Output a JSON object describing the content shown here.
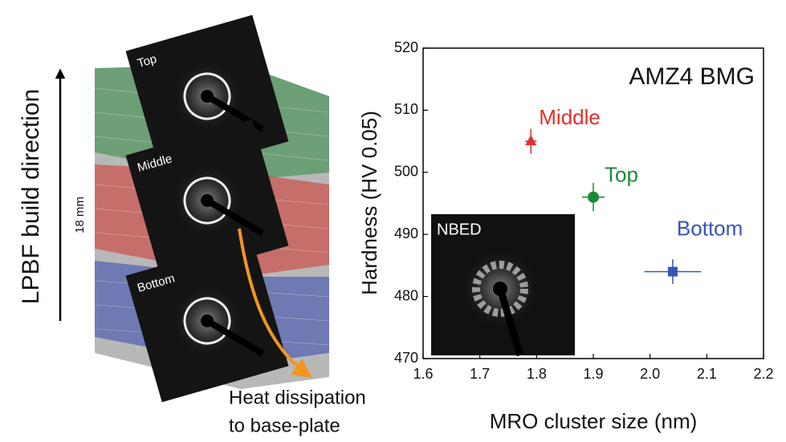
{
  "diagram": {
    "build_direction": "LPBF build direction",
    "height_label": "18 mm",
    "panels": [
      "Top",
      "Middle",
      "Bottom"
    ],
    "heat_text": [
      "Heat dissipation",
      "to base-plate"
    ]
  },
  "chart_data": {
    "type": "scatter",
    "title": "AMZ4 BMG",
    "xlabel": "MRO cluster size (nm)",
    "ylabel": "Hardness (HV 0.05)",
    "inset_label": "NBED",
    "xlim": [
      1.6,
      2.2
    ],
    "xticks": [
      1.6,
      1.7,
      1.8,
      1.9,
      {
        "value": 2,
        "label": "2.0"
      },
      2.1,
      2.2
    ],
    "ylim": [
      470,
      520
    ],
    "yticks": [
      470,
      480,
      490,
      500,
      510,
      520
    ],
    "series": [
      {
        "name": "Middle",
        "color": "#e0302a",
        "marker": "triangle",
        "x": [
          1.79
        ],
        "values": [
          505
        ],
        "xerr": [
          0.01
        ],
        "yerr": [
          2
        ]
      },
      {
        "name": "Top",
        "color": "#1a8a3a",
        "marker": "circle",
        "x": [
          1.9
        ],
        "values": [
          496
        ],
        "xerr": [
          0.02
        ],
        "yerr": [
          2.3
        ]
      },
      {
        "name": "Bottom",
        "color": "#3a55b5",
        "marker": "square",
        "x": [
          2.04
        ],
        "values": [
          484
        ],
        "xerr": [
          0.05
        ],
        "yerr": [
          2
        ]
      }
    ]
  }
}
